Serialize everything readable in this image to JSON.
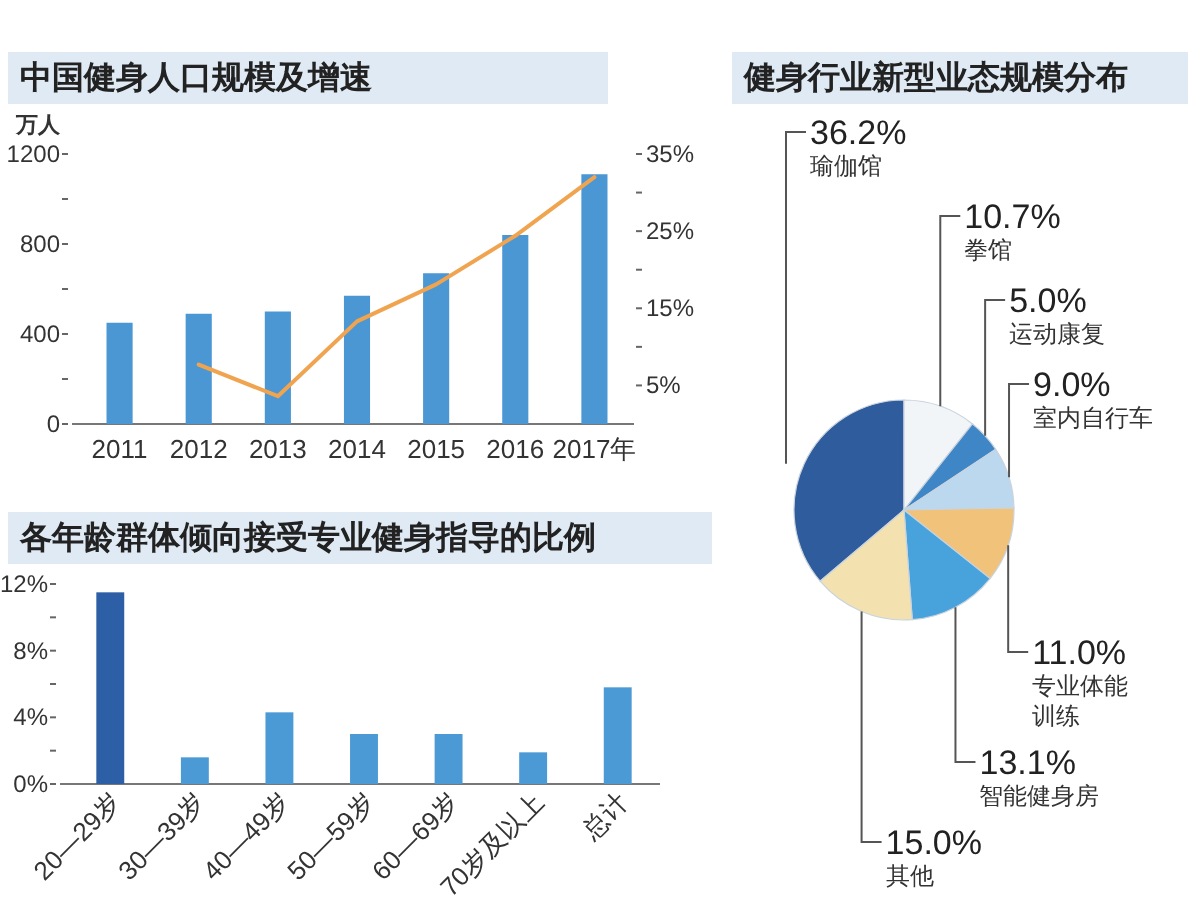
{
  "chart_data": [
    {
      "type": "bar",
      "title": "中国健身人口规模及增速",
      "ylabel": "万人",
      "categories": [
        "2011",
        "2012",
        "2013",
        "2014",
        "2015",
        "2016",
        "2017年"
      ],
      "series": [
        {
          "type": "bar",
          "color": "#4a97d4",
          "values": [
            450,
            490,
            500,
            570,
            670,
            840,
            1110
          ]
        },
        {
          "type": "line",
          "axis": "y2",
          "color": "#f0a450",
          "values": [
            null,
            7.7,
            3.6,
            13.3,
            18.1,
            24.4,
            32.0
          ]
        }
      ],
      "ylim": [
        0,
        1200
      ],
      "yticks": [
        0,
        {
          "value": 200,
          "label": null
        },
        400,
        {
          "value": 600,
          "label": null
        },
        800,
        {
          "value": 1000,
          "label": null
        },
        1200
      ],
      "y2lim": [
        0,
        35
      ],
      "y2ticks": [
        {
          "value": 5,
          "label": "5%"
        },
        {
          "value": 10,
          "label": null
        },
        {
          "value": 15,
          "label": "15%"
        },
        {
          "value": 20,
          "label": null
        },
        {
          "value": 25,
          "label": "25%"
        },
        {
          "value": 30,
          "label": null
        },
        {
          "value": 35,
          "label": "35%"
        }
      ]
    },
    {
      "type": "bar",
      "title": "各年龄群体倾向接受专业健身指导的比例",
      "categories": [
        "20—29岁",
        "30—39岁",
        "40—49岁",
        "50—59岁",
        "60—69岁",
        "70岁及以上",
        "总计"
      ],
      "values": [
        11.5,
        1.6,
        4.3,
        3.0,
        3.0,
        1.9,
        5.8
      ],
      "colors": [
        "#2c5fa5",
        "#4b9ad6",
        "#4b9ad6",
        "#4b9ad6",
        "#4b9ad6",
        "#4b9ad6",
        "#4b9ad6"
      ],
      "ylim": [
        0,
        12
      ],
      "yticks": [
        {
          "value": 0,
          "label": "0%"
        },
        {
          "value": 2,
          "label": null
        },
        {
          "value": 4,
          "label": "4%"
        },
        {
          "value": 6,
          "label": null
        },
        {
          "value": 8,
          "label": "8%"
        },
        {
          "value": 10,
          "label": null
        },
        {
          "value": 12,
          "label": "12%"
        }
      ]
    },
    {
      "type": "pie",
      "title": "健身行业新型业态规模分布",
      "value_labels": [
        "36.2%",
        "10.7%",
        "5.0%",
        "9.0%",
        "11.0%",
        "13.1%",
        "15.0%"
      ],
      "categories": [
        "瑜伽馆",
        "拳馆",
        "运动康复",
        "室内自行车",
        "专业体能训练",
        "智能健身房",
        "其他"
      ],
      "values": [
        36.2,
        10.7,
        5.0,
        9.0,
        11.0,
        13.1,
        15.0
      ],
      "colors": [
        "#2f5c9c",
        "#f2f5f8",
        "#3f86c6",
        "#bcd8ee",
        "#f0c27a",
        "#48a3dc",
        "#f3e2b0"
      ]
    }
  ]
}
